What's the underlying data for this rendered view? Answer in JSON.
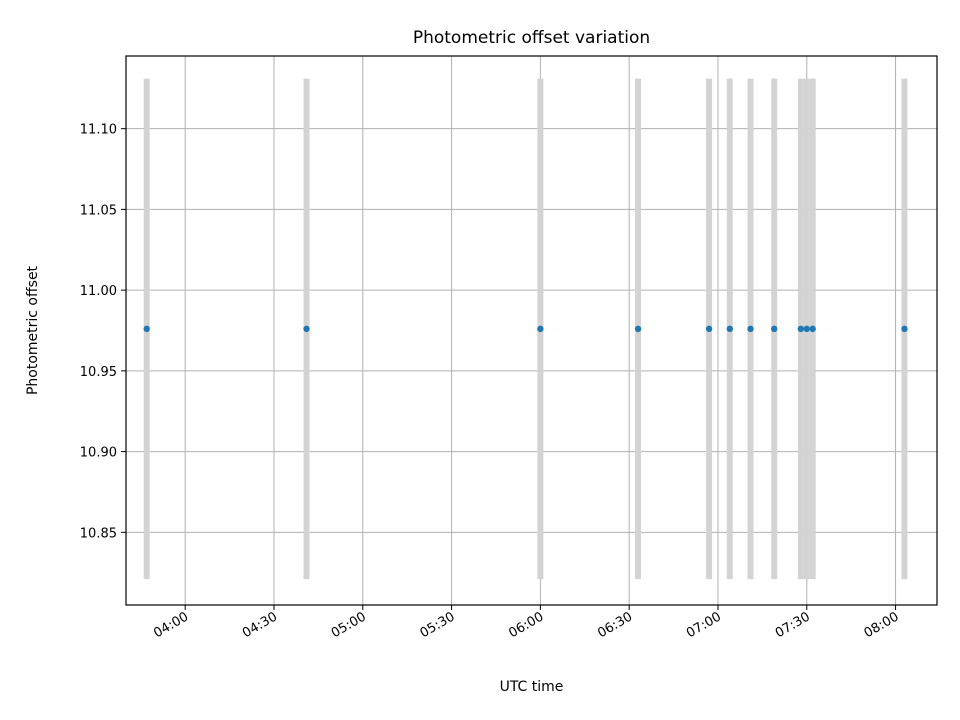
{
  "chart_data": {
    "type": "scatter",
    "title": "Photometric offset variation",
    "xlabel": "UTC time",
    "ylabel": "Photometric offset",
    "x_axis_kind": "time",
    "xlim": [
      "03:40",
      "08:14"
    ],
    "ylim": [
      10.805,
      11.145
    ],
    "grid": true,
    "x_ticks": [
      "04:00",
      "04:30",
      "05:00",
      "05:30",
      "06:00",
      "06:30",
      "07:00",
      "07:30",
      "08:00"
    ],
    "y_ticks": [
      "10.85",
      "10.90",
      "10.95",
      "11.00",
      "11.05",
      "11.10"
    ],
    "colors": {
      "marker": "#1f77b4",
      "errorbar": "#d3d3d3",
      "grid": "#b0b0b0"
    },
    "series": [
      {
        "x": [
          "03:47",
          "04:41",
          "06:00",
          "06:33",
          "06:57",
          "07:04",
          "07:11",
          "07:19",
          "07:28",
          "07:30",
          "07:32",
          "08:03"
        ],
        "y": [
          10.976,
          10.976,
          10.976,
          10.976,
          10.976,
          10.976,
          10.976,
          10.976,
          10.976,
          10.976,
          10.976,
          10.976
        ],
        "yerr": [
          0.155,
          0.155,
          0.155,
          0.155,
          0.155,
          0.155,
          0.155,
          0.155,
          0.155,
          0.155,
          0.155,
          0.155
        ]
      }
    ]
  }
}
